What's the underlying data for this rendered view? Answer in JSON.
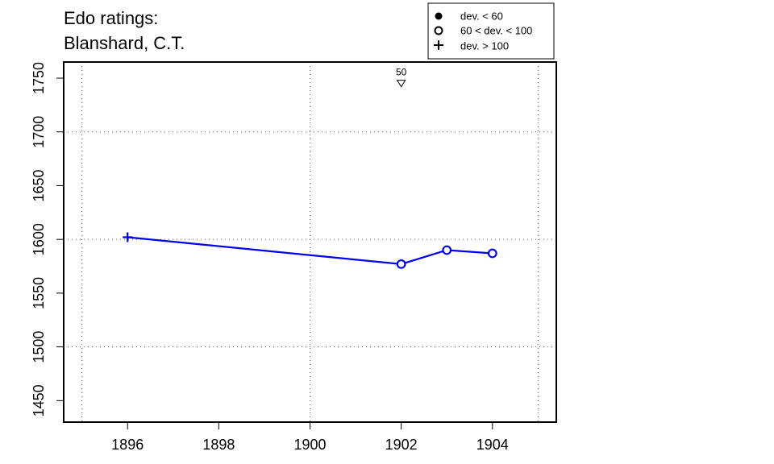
{
  "chart_data": {
    "type": "line",
    "title_lines": [
      "Edo ratings:",
      "Blanshard, C.T."
    ],
    "xlabel": "",
    "ylabel": "",
    "xlim": [
      1894.6,
      1905.4
    ],
    "ylim": [
      1430,
      1765
    ],
    "x_ticks": [
      1896,
      1898,
      1900,
      1902,
      1904
    ],
    "y_ticks": [
      1450,
      1500,
      1550,
      1600,
      1650,
      1700,
      1750
    ],
    "grid_x": [
      1895,
      1900,
      1905
    ],
    "grid_y": [
      1500,
      1600,
      1700
    ],
    "grid": true,
    "series": [
      {
        "color": "#0000ee",
        "points": [
          {
            "x": 1896,
            "y": 1602,
            "marker": "plus"
          },
          {
            "x": 1902,
            "y": 1577,
            "marker": "open-circle"
          },
          {
            "x": 1903,
            "y": 1590,
            "marker": "open-circle"
          },
          {
            "x": 1904,
            "y": 1587,
            "marker": "open-circle"
          }
        ]
      }
    ],
    "annotations": [
      {
        "x": 1902,
        "y": 1745,
        "marker": "down-triangle",
        "label": "50"
      }
    ],
    "legend": {
      "placement": "top-right, outside plot",
      "entries": [
        {
          "marker": "filled-circle",
          "label": "dev. < 60"
        },
        {
          "marker": "open-circle",
          "label": "60 < dev. < 100"
        },
        {
          "marker": "plus",
          "label": "dev. > 100"
        }
      ]
    }
  }
}
